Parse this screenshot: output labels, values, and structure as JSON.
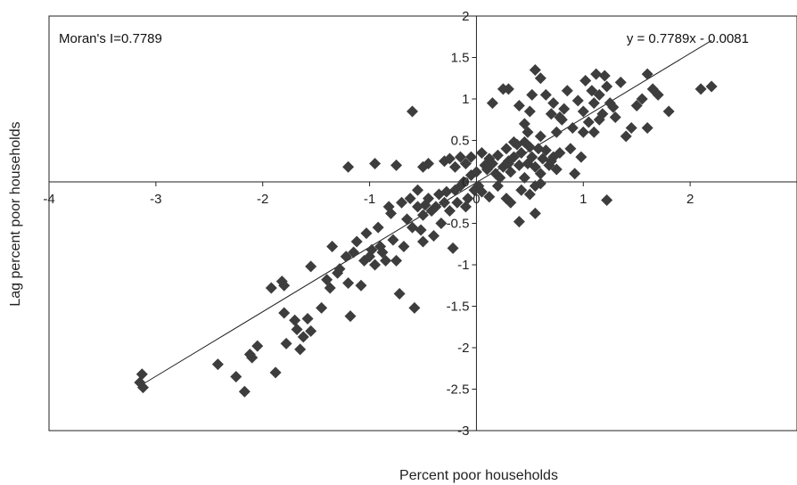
{
  "chart_data": {
    "type": "scatter",
    "title": "",
    "xlabel": "Percent poor households",
    "ylabel": "Lag percent poor households",
    "xlim": [
      -4,
      3
    ],
    "ylim": [
      -3,
      2
    ],
    "x_ticks": [
      "-4",
      "-3",
      "-2",
      "-1",
      "0",
      "1",
      "2"
    ],
    "y_ticks": [
      "-3",
      "-2.5",
      "-2",
      "-1.5",
      "-1",
      "-0.5",
      "0",
      "0.5",
      "1",
      "1.5",
      "2"
    ],
    "annotations": {
      "moran": "Moran's I=0.7789",
      "equation": "y = 0.7789x - 0.0081"
    },
    "trendline": {
      "slope": 0.7789,
      "intercept": -0.0081,
      "x_range": [
        -3.12,
        2.2
      ]
    },
    "marker": {
      "shape": "diamond",
      "color": "#3d3d3d"
    },
    "grid": false,
    "points": [
      [
        -3.13,
        -2.32
      ],
      [
        -3.12,
        -2.48
      ],
      [
        -3.15,
        -2.42
      ],
      [
        -2.42,
        -2.2
      ],
      [
        -2.25,
        -2.35
      ],
      [
        -2.17,
        -2.53
      ],
      [
        -2.12,
        -2.08
      ],
      [
        -2.1,
        -2.12
      ],
      [
        -2.05,
        -1.98
      ],
      [
        -1.92,
        -1.28
      ],
      [
        -1.88,
        -2.3
      ],
      [
        -1.82,
        -1.2
      ],
      [
        -1.8,
        -1.25
      ],
      [
        -1.8,
        -1.58
      ],
      [
        -1.78,
        -1.95
      ],
      [
        -1.7,
        -1.67
      ],
      [
        -1.68,
        -1.78
      ],
      [
        -1.65,
        -2.02
      ],
      [
        -1.62,
        -1.87
      ],
      [
        -1.58,
        -1.65
      ],
      [
        -1.55,
        -1.8
      ],
      [
        -1.55,
        -1.02
      ],
      [
        -1.45,
        -1.52
      ],
      [
        -1.4,
        -1.18
      ],
      [
        -1.37,
        -1.28
      ],
      [
        -1.35,
        -0.78
      ],
      [
        -1.3,
        -1.1
      ],
      [
        -1.28,
        -1.05
      ],
      [
        -1.22,
        -0.9
      ],
      [
        -1.2,
        -1.22
      ],
      [
        -1.18,
        -1.62
      ],
      [
        -1.15,
        -0.85
      ],
      [
        -1.12,
        -0.72
      ],
      [
        -1.08,
        -1.25
      ],
      [
        -1.05,
        -0.95
      ],
      [
        -1.03,
        -0.62
      ],
      [
        -1.0,
        -0.9
      ],
      [
        -0.98,
        -0.82
      ],
      [
        -0.95,
        -1.0
      ],
      [
        -0.92,
        -0.55
      ],
      [
        -0.9,
        -0.78
      ],
      [
        -0.88,
        -0.85
      ],
      [
        -0.85,
        -0.95
      ],
      [
        -0.82,
        -0.3
      ],
      [
        -0.8,
        -0.38
      ],
      [
        -0.78,
        -0.7
      ],
      [
        -0.75,
        -0.95
      ],
      [
        -0.72,
        -1.35
      ],
      [
        -0.7,
        -0.25
      ],
      [
        -0.68,
        -0.78
      ],
      [
        -0.65,
        -0.45
      ],
      [
        -0.62,
        -0.2
      ],
      [
        -0.6,
        -0.55
      ],
      [
        -0.58,
        -1.52
      ],
      [
        -0.55,
        -0.3
      ],
      [
        -0.55,
        -0.1
      ],
      [
        -0.52,
        -0.58
      ],
      [
        -0.5,
        -0.72
      ],
      [
        -0.5,
        -0.4
      ],
      [
        -0.48,
        -0.28
      ],
      [
        -0.45,
        -0.2
      ],
      [
        -0.42,
        -0.35
      ],
      [
        -0.4,
        -0.65
      ],
      [
        -0.38,
        -0.3
      ],
      [
        -0.35,
        -0.15
      ],
      [
        -0.33,
        -0.5
      ],
      [
        -0.3,
        -0.25
      ],
      [
        -0.28,
        -0.12
      ],
      [
        -0.25,
        -0.35
      ],
      [
        -0.22,
        -0.8
      ],
      [
        -0.2,
        -0.1
      ],
      [
        -0.18,
        -0.25
      ],
      [
        -0.15,
        -0.05
      ],
      [
        -0.12,
        0.0
      ],
      [
        -0.1,
        -0.3
      ],
      [
        -0.08,
        -0.2
      ],
      [
        -0.05,
        0.08
      ],
      [
        -0.02,
        -0.1
      ],
      [
        -1.2,
        0.18
      ],
      [
        -0.95,
        0.22
      ],
      [
        -0.75,
        0.2
      ],
      [
        -0.6,
        0.85
      ],
      [
        -0.5,
        0.18
      ],
      [
        -0.45,
        0.22
      ],
      [
        -0.3,
        0.25
      ],
      [
        -0.25,
        0.28
      ],
      [
        -0.2,
        0.18
      ],
      [
        -0.15,
        0.3
      ],
      [
        -0.1,
        0.22
      ],
      [
        -0.05,
        0.3
      ],
      [
        0.0,
        0.12
      ],
      [
        0.02,
        -0.05
      ],
      [
        0.05,
        0.35
      ],
      [
        0.08,
        0.2
      ],
      [
        0.1,
        0.15
      ],
      [
        0.12,
        0.28
      ],
      [
        0.15,
        0.22
      ],
      [
        0.18,
        0.1
      ],
      [
        0.2,
        0.32
      ],
      [
        0.22,
        0.05
      ],
      [
        0.25,
        0.18
      ],
      [
        0.28,
        0.4
      ],
      [
        0.3,
        0.25
      ],
      [
        0.32,
        0.12
      ],
      [
        0.35,
        0.3
      ],
      [
        0.38,
        0.45
      ],
      [
        0.4,
        0.2
      ],
      [
        0.42,
        0.35
      ],
      [
        0.45,
        0.05
      ],
      [
        0.48,
        0.22
      ],
      [
        0.5,
        0.42
      ],
      [
        0.52,
        0.3
      ],
      [
        0.55,
        0.18
      ],
      [
        0.58,
        0.4
      ],
      [
        0.6,
        0.1
      ],
      [
        0.62,
        0.28
      ],
      [
        0.65,
        0.38
      ],
      [
        0.68,
        0.2
      ],
      [
        0.7,
        0.25
      ],
      [
        0.72,
        0.3
      ],
      [
        0.75,
        0.15
      ],
      [
        0.78,
        0.35
      ],
      [
        0.05,
        -0.12
      ],
      [
        0.12,
        -0.18
      ],
      [
        0.2,
        -0.05
      ],
      [
        0.28,
        -0.2
      ],
      [
        0.32,
        -0.25
      ],
      [
        0.42,
        -0.1
      ],
      [
        0.5,
        -0.15
      ],
      [
        0.55,
        -0.05
      ],
      [
        0.6,
        -0.02
      ],
      [
        0.4,
        -0.48
      ],
      [
        0.55,
        -0.38
      ],
      [
        0.3,
        0.22
      ],
      [
        0.15,
        0.95
      ],
      [
        0.25,
        1.12
      ],
      [
        0.3,
        1.12
      ],
      [
        0.4,
        0.92
      ],
      [
        0.45,
        0.7
      ],
      [
        0.5,
        0.85
      ],
      [
        0.52,
        1.05
      ],
      [
        0.55,
        1.35
      ],
      [
        0.6,
        1.25
      ],
      [
        0.65,
        1.05
      ],
      [
        0.7,
        0.82
      ],
      [
        0.72,
        0.95
      ],
      [
        0.75,
        0.6
      ],
      [
        0.78,
        0.78
      ],
      [
        0.8,
        0.75
      ],
      [
        0.82,
        0.88
      ],
      [
        0.85,
        1.1
      ],
      [
        0.9,
        0.65
      ],
      [
        0.95,
        0.98
      ],
      [
        1.0,
        0.85
      ],
      [
        1.02,
        1.22
      ],
      [
        1.05,
        0.72
      ],
      [
        1.08,
        1.1
      ],
      [
        1.1,
        0.95
      ],
      [
        1.12,
        1.3
      ],
      [
        1.15,
        1.05
      ],
      [
        1.18,
        0.82
      ],
      [
        1.2,
        1.28
      ],
      [
        1.22,
        1.15
      ],
      [
        1.25,
        0.95
      ],
      [
        1.28,
        0.9
      ],
      [
        1.3,
        0.78
      ],
      [
        1.35,
        1.2
      ],
      [
        1.4,
        0.55
      ],
      [
        1.45,
        0.65
      ],
      [
        1.5,
        0.92
      ],
      [
        1.55,
        1.0
      ],
      [
        1.6,
        0.65
      ],
      [
        1.6,
        1.3
      ],
      [
        1.65,
        1.12
      ],
      [
        1.7,
        1.05
      ],
      [
        1.8,
        0.85
      ],
      [
        1.0,
        0.6
      ],
      [
        1.1,
        0.6
      ],
      [
        1.15,
        0.75
      ],
      [
        1.22,
        -0.22
      ],
      [
        0.88,
        0.4
      ],
      [
        0.92,
        0.1
      ],
      [
        0.98,
        0.3
      ],
      [
        2.1,
        1.12
      ],
      [
        2.2,
        1.15
      ],
      [
        0.35,
        0.48
      ],
      [
        0.45,
        0.48
      ],
      [
        0.6,
        0.55
      ],
      [
        0.48,
        0.6
      ]
    ]
  }
}
